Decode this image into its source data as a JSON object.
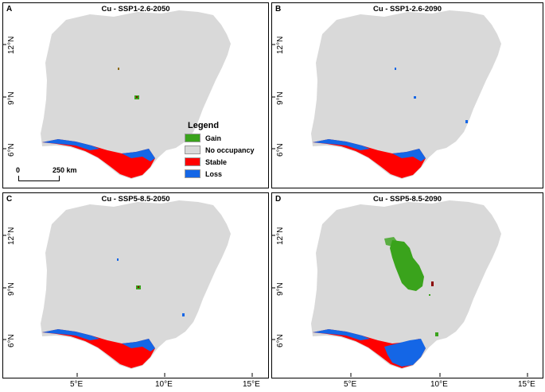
{
  "panels": [
    {
      "letter": "A",
      "title": "Cu - SSP1-2.6-2050"
    },
    {
      "letter": "B",
      "title": "Cu - SSP1-2.6-2090"
    },
    {
      "letter": "C",
      "title": "Cu - SSP5-8.5-2050"
    },
    {
      "letter": "D",
      "title": "Cu - SSP5-8.5-2090"
    }
  ],
  "lat_labels": [
    "12°N",
    "9°N",
    "6°N"
  ],
  "lon_labels": [
    "5°E",
    "10°E",
    "15°E"
  ],
  "legend": {
    "title": "Legend",
    "items": [
      {
        "label": "Gain",
        "color": "#3aa31c"
      },
      {
        "label": "No occupancy",
        "color": "#d9d9d9"
      },
      {
        "label": "Stable",
        "color": "#ff0000"
      },
      {
        "label": "Loss",
        "color": "#1466e6"
      }
    ]
  },
  "scale": {
    "start": "0",
    "end": "250 km"
  }
}
